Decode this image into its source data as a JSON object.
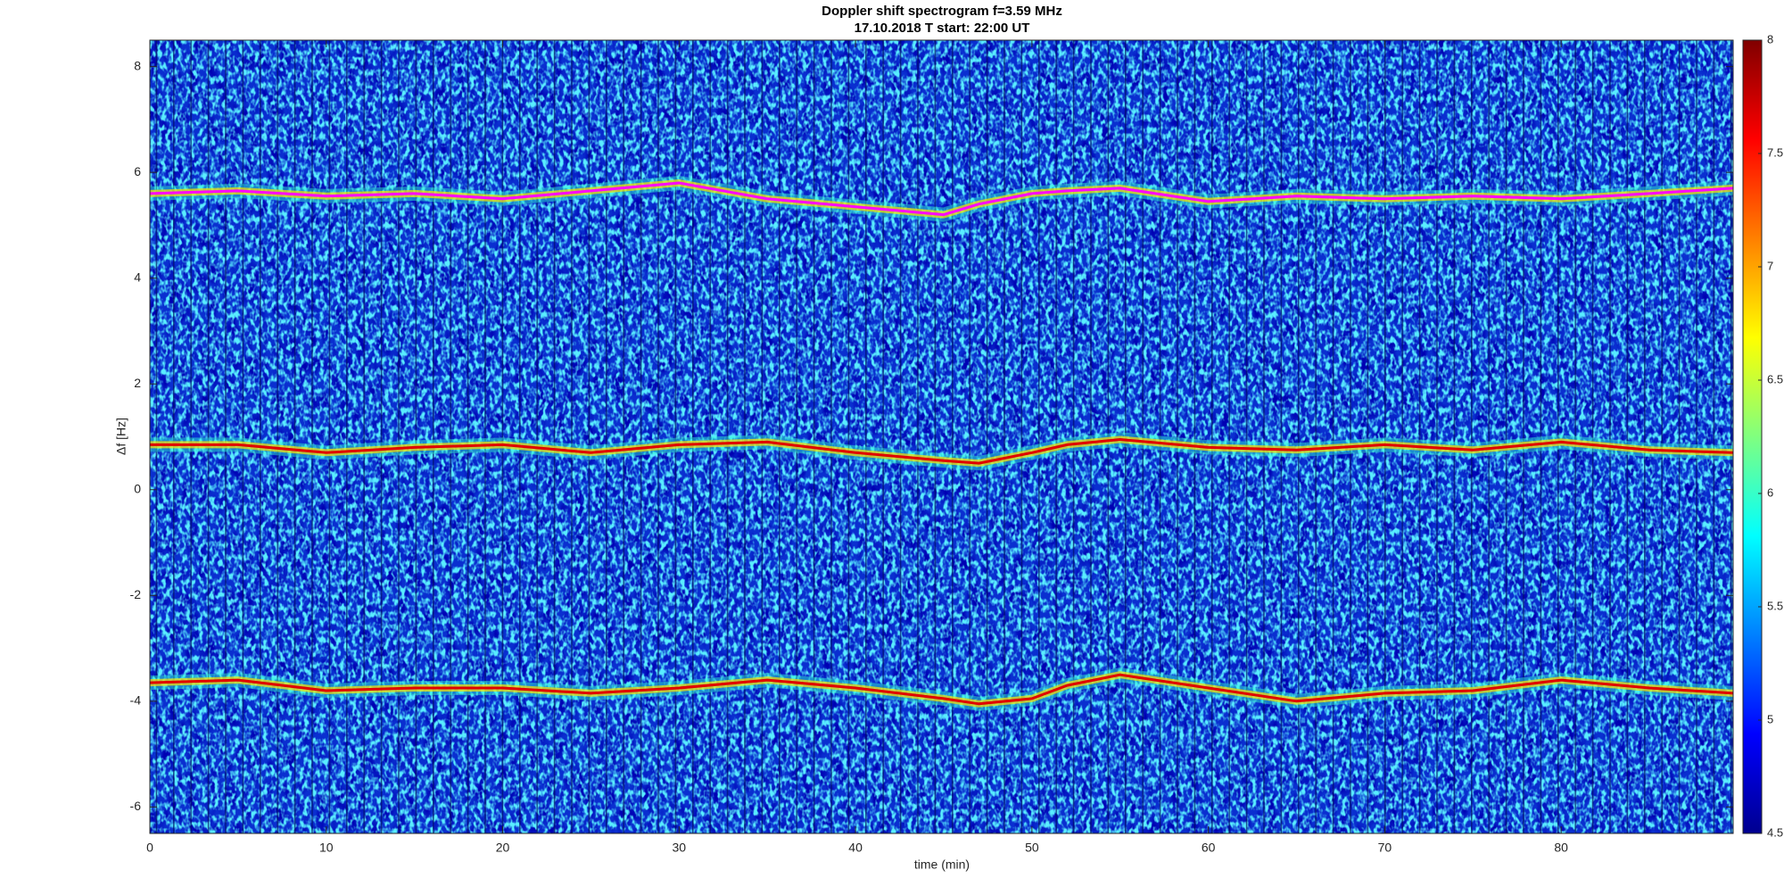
{
  "chart_data": {
    "type": "spectrogram",
    "title": "Doppler shift spectrogram f=3.59 MHz",
    "subtitle": "17.10.2018   T start: 22:00 UT",
    "xlabel": "time (min)",
    "ylabel": "Δf [Hz]",
    "xlim": [
      0,
      89.75
    ],
    "ylim": [
      -6.5,
      8.5
    ],
    "xticks": [
      0,
      10,
      20,
      30,
      40,
      50,
      60,
      70,
      80
    ],
    "yticks": [
      -6,
      -4,
      -2,
      0,
      2,
      4,
      6,
      8
    ],
    "colormap": "jet",
    "clim": [
      4.5,
      8
    ],
    "cticks": [
      4.5,
      5,
      5.5,
      6,
      6.5,
      7,
      7.5,
      8
    ],
    "x": [
      0,
      5,
      10,
      15,
      20,
      25,
      30,
      35,
      40,
      45,
      47,
      50,
      52,
      55,
      60,
      65,
      70,
      75,
      80,
      85,
      89.75
    ],
    "series": [
      {
        "color": "#ff00ff",
        "values": [
          5.6,
          5.65,
          5.55,
          5.6,
          5.5,
          5.65,
          5.8,
          5.5,
          5.35,
          5.2,
          5.4,
          5.6,
          5.65,
          5.7,
          5.45,
          5.55,
          5.5,
          5.55,
          5.5,
          5.6,
          5.7
        ]
      },
      {
        "color": "#e00000",
        "values": [
          0.85,
          0.85,
          0.7,
          0.8,
          0.85,
          0.7,
          0.85,
          0.9,
          0.7,
          0.55,
          0.5,
          0.7,
          0.85,
          0.95,
          0.8,
          0.75,
          0.85,
          0.75,
          0.9,
          0.75,
          0.7
        ]
      },
      {
        "color": "#e00000",
        "values": [
          -3.65,
          -3.6,
          -3.8,
          -3.75,
          -3.75,
          -3.85,
          -3.75,
          -3.6,
          -3.75,
          -3.95,
          -4.05,
          -3.95,
          -3.7,
          -3.5,
          -3.75,
          -4.0,
          -3.85,
          -3.8,
          -3.6,
          -3.75,
          -3.85
        ]
      }
    ]
  }
}
